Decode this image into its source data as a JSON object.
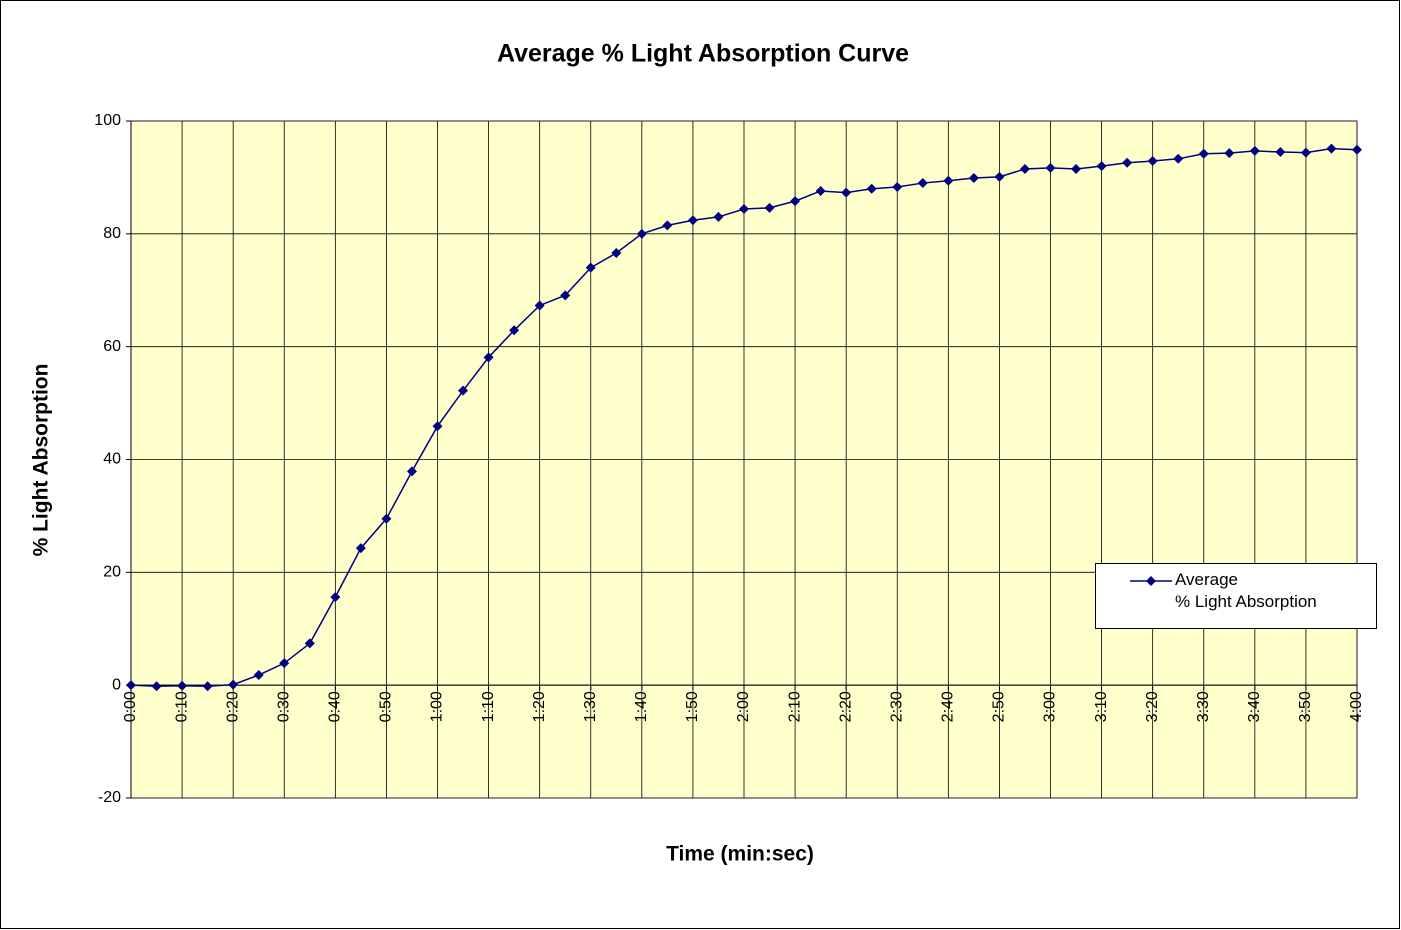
{
  "chart_data": {
    "type": "line",
    "title": "Average % Light Absorption Curve",
    "x_label": "Time (min:sec)",
    "y_label": "% Light Absorption",
    "x": [
      0,
      5,
      10,
      15,
      20,
      25,
      30,
      35,
      40,
      45,
      50,
      55,
      60,
      65,
      70,
      75,
      80,
      85,
      90,
      95,
      100,
      105,
      110,
      115,
      120,
      125,
      130,
      135,
      140,
      145,
      150,
      155,
      160,
      165,
      170,
      175,
      180,
      185,
      190,
      195,
      200,
      205,
      210,
      215,
      220,
      225,
      230,
      235,
      240
    ],
    "series": [
      {
        "name": "Average\n% Light Absorption",
        "color": "#000080",
        "values": [
          0,
          -0.2,
          -0.1,
          -0.2,
          0.1,
          1.8,
          3.9,
          7.4,
          15.6,
          24.3,
          29.5,
          37.9,
          45.9,
          52.2,
          58.1,
          62.9,
          67.3,
          69.1,
          74,
          76.6,
          80,
          81.5,
          82.4,
          83,
          84.4,
          84.6,
          85.8,
          87.6,
          87.3,
          88,
          88.3,
          89,
          89.4,
          89.9,
          90.1,
          91.5,
          91.7,
          91.5,
          92,
          92.6,
          92.9,
          93.3,
          94.2,
          94.3,
          94.7,
          94.5,
          94.4,
          95.1,
          94.9
        ]
      }
    ],
    "xlim": [
      0,
      240
    ],
    "xticks": [
      {
        "value": 0,
        "label": "0:00"
      },
      {
        "value": 10,
        "label": "0:10"
      },
      {
        "value": 20,
        "label": "0:20"
      },
      {
        "value": 30,
        "label": "0:30"
      },
      {
        "value": 40,
        "label": "0:40"
      },
      {
        "value": 50,
        "label": "0:50"
      },
      {
        "value": 60,
        "label": "1:00"
      },
      {
        "value": 70,
        "label": "1:10"
      },
      {
        "value": 80,
        "label": "1:20"
      },
      {
        "value": 90,
        "label": "1:30"
      },
      {
        "value": 100,
        "label": "1:40"
      },
      {
        "value": 110,
        "label": "1:50"
      },
      {
        "value": 120,
        "label": "2:00"
      },
      {
        "value": 130,
        "label": "2:10"
      },
      {
        "value": 140,
        "label": "2:20"
      },
      {
        "value": 150,
        "label": "2:30"
      },
      {
        "value": 160,
        "label": "2:40"
      },
      {
        "value": 170,
        "label": "2:50"
      },
      {
        "value": 180,
        "label": "3:00"
      },
      {
        "value": 190,
        "label": "3:10"
      },
      {
        "value": 200,
        "label": "3:20"
      },
      {
        "value": 210,
        "label": "3:30"
      },
      {
        "value": 220,
        "label": "3:40"
      },
      {
        "value": 230,
        "label": "3:50"
      },
      {
        "value": 240,
        "label": "4:00"
      }
    ],
    "ylim": [
      -20,
      100
    ],
    "yticks": [
      -20,
      0,
      20,
      40,
      60,
      80,
      100
    ],
    "grid": true,
    "legend": "right"
  }
}
